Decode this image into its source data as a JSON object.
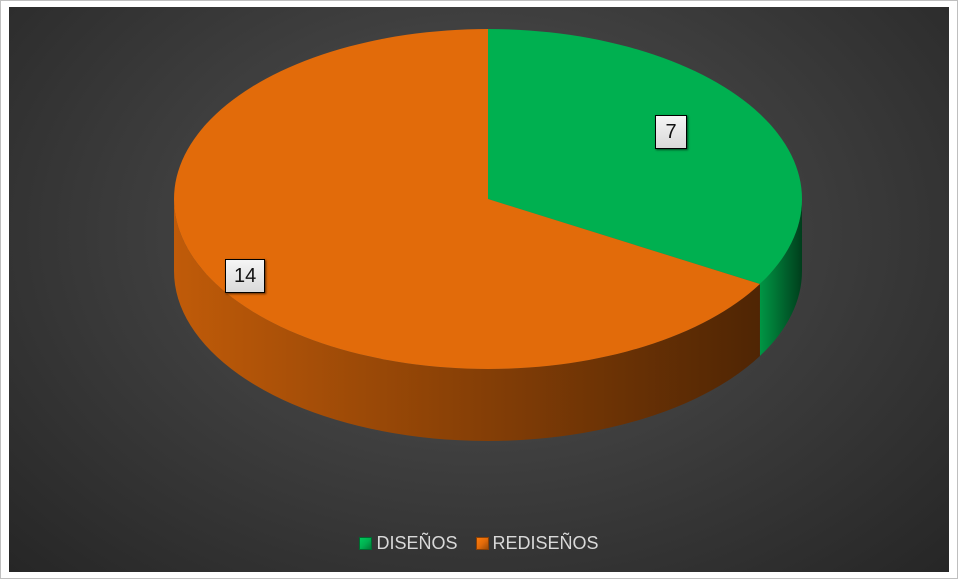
{
  "chart_data": {
    "type": "pie",
    "labels": [
      "DISEÑOS",
      "REDISEÑOS"
    ],
    "values": [
      7,
      14
    ],
    "colors": [
      "#00b050",
      "#e26b0a"
    ],
    "data_labels": [
      "7",
      "14"
    ],
    "legend_position": "bottom",
    "three_d": true
  }
}
